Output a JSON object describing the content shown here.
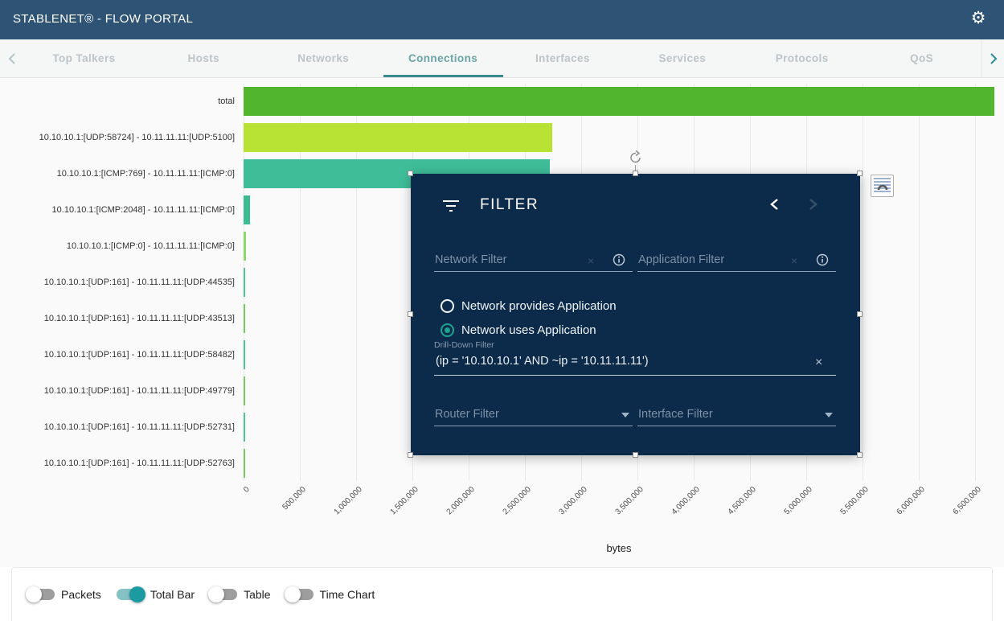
{
  "header": {
    "title": "STABLENET® - FLOW PORTAL"
  },
  "tabs": {
    "items": [
      {
        "label": "Top Talkers",
        "active": false
      },
      {
        "label": "Hosts",
        "active": false
      },
      {
        "label": "Networks",
        "active": false
      },
      {
        "label": "Connections",
        "active": true
      },
      {
        "label": "Interfaces",
        "active": false
      },
      {
        "label": "Services",
        "active": false
      },
      {
        "label": "Protocols",
        "active": false
      },
      {
        "label": "QoS",
        "active": false
      }
    ]
  },
  "chart_data": {
    "type": "bar",
    "orientation": "horizontal",
    "title": "",
    "xlabel": "bytes",
    "categories": [
      "total",
      "10.10.10.1:[UDP:58724] - 10.11.11.11:[UDP:5100]",
      "10.10.10.1:[ICMP:769] - 10.11.11.11:[ICMP:0]",
      "10.10.10.1:[ICMP:2048] - 10.11.11.11:[ICMP:0]",
      "10.10.10.1:[ICMP:0] - 10.11.11.11:[ICMP:0]",
      "10.10.10.1:[UDP:161] - 10.11.11.11:[UDP:44535]",
      "10.10.10.1:[UDP:161] - 10.11.11.11:[UDP:43513]",
      "10.10.10.1:[UDP:161] - 10.11.11.11:[UDP:58482]",
      "10.10.10.1:[UDP:161] - 10.11.11.11:[UDP:49779]",
      "10.10.10.1:[UDP:161] - 10.11.11.11:[UDP:52731]",
      "10.10.10.1:[UDP:161] - 10.11.11.11:[UDP:52763]"
    ],
    "values": [
      6671000,
      2743000,
      2721000,
      57000,
      21000,
      14000,
      14000,
      14000,
      14000,
      14000,
      14000
    ],
    "colors": [
      "#52b52e",
      "#b8e234",
      "#3ebd98",
      "#3bbd8f",
      "#8bd86b",
      "#52c492",
      "#76cc58",
      "#52c492",
      "#76cc58",
      "#52c492",
      "#76cc58"
    ],
    "xticks": [
      "0",
      "500,000",
      "1,000,000",
      "1,500,000",
      "2,000,000",
      "2,500,000",
      "3,000,000",
      "3,500,000",
      "4,000,000",
      "4,500,000",
      "5,000,000",
      "5,500,000",
      "6,000,000",
      "6,500,000"
    ],
    "xtick_step_value": 500000,
    "xlim": [
      0,
      6700000
    ],
    "grid": true,
    "legend_position": "none"
  },
  "filter_dialog": {
    "title": "FILTER",
    "network_filter": {
      "placeholder": "Network Filter"
    },
    "application_filter": {
      "placeholder": "Application Filter"
    },
    "radio_options": [
      {
        "label": "Network provides Application",
        "selected": false
      },
      {
        "label": "Network uses Application",
        "selected": true
      }
    ],
    "drilldown_filter": {
      "label": "Drill-Down Filter",
      "value": "(ip = '10.10.10.1' AND ~ip = '10.11.11.11')"
    },
    "router_filter": {
      "placeholder": "Router Filter"
    },
    "interface_filter": {
      "placeholder": "Interface Filter"
    },
    "clear_symbol": "×"
  },
  "toggles": [
    {
      "label": "Packets",
      "on": false
    },
    {
      "label": "Total Bar",
      "on": true
    },
    {
      "label": "Table",
      "on": false
    },
    {
      "label": "Time Chart",
      "on": false
    }
  ],
  "colors": {
    "header_bg": "#2e5374",
    "active_tab": "#3a8c92",
    "dialog_bg": "#0c2a49",
    "toggle_on": "#1b9aa1",
    "chart_bg": "#fafafa"
  }
}
